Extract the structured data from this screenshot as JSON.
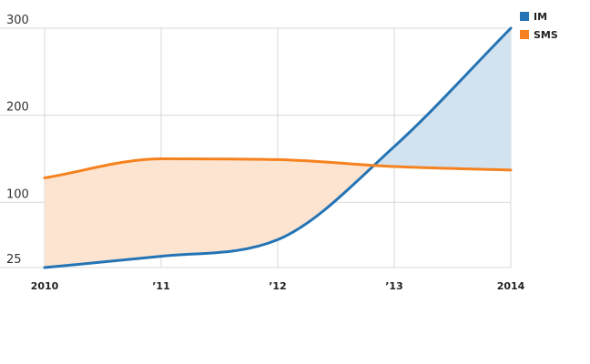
{
  "chart_data": {
    "type": "line",
    "x": [
      2010,
      2011,
      2012,
      2013,
      2014
    ],
    "x_tick_labels": [
      "2010",
      "’11",
      "’12",
      "’13",
      "2014"
    ],
    "y_ticks": [
      25,
      100,
      200,
      300
    ],
    "ylim": [
      25,
      300
    ],
    "xlim": [
      2010,
      2014
    ],
    "grid": true,
    "legend_position": "top-right",
    "series": [
      {
        "name": "IM",
        "color": "#2474b5",
        "fill": "#d3e2ef",
        "values": [
          25,
          38,
          57,
          164,
          300
        ]
      },
      {
        "name": "SMS",
        "color": "#f5821f",
        "fill": "#fde4d0",
        "values": [
          128,
          150,
          149,
          141,
          137
        ]
      }
    ],
    "title": "",
    "xlabel": "",
    "ylabel": ""
  }
}
